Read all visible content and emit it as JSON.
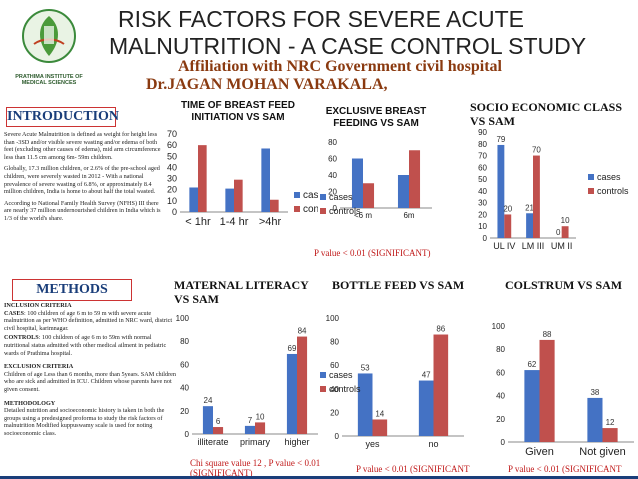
{
  "header": {
    "title_line1": "RISK FACTORS FOR SEVERE ACUTE",
    "title_line2": "MALNUTRITION - A CASE CONTROL STUDY",
    "affiliation": "Affiliation  with NRC Government civil hospital",
    "author": "Dr.JAGAN MOHAN VARAKALA,",
    "logo_text": "PRATHIMA INSTITUTE OF MEDICAL SCIENCES"
  },
  "intro": {
    "heading": "INTRODUCTION",
    "paragraphs": [
      "Severe Acute Malnutrition is defined as weight for height less than -3SD and/or visible severe wasting and/or edema of both feet (excluding other causes of edema), mid arm circumference less than 11.5 cm among 6m- 59m children.",
      "Globally, 17.3 million children, or 2.6% of the pre-school aged children, were severely wasted in 2012 - With a national prevalence of severe wasting of 6.8%, or approximately 8.4 million children, India is home to about half the total wasted.",
      "According to National Family Health Survey (NFHS) III there are nearly 37 million undernourished children in India which is 1/3 of the world's share."
    ]
  },
  "methods": {
    "heading": "METHODS",
    "blocks": [
      {
        "title": "INCLUSION CRITERIA",
        "text": ""
      },
      {
        "title": "CASES",
        "text": ": 100 children of age 6 m to 59 m with severe acute malnutrition as per WHO definition, admitted in NRC ward, district civil hospital, karimnagar."
      },
      {
        "title": "CONTROLS",
        "text": ": 100 children of age 6 m to 59m with normal nutritional status admitted with other medical ailment in pediatric wards of Prathima hospital."
      },
      {
        "title": "EXCLUSION CRITERIA",
        "text": "Children of age Less than 6 months, more than 5years. SAM children who are sick and admitted in ICU. Children whose parents have not given consent."
      },
      {
        "title": "METHODOLOGY",
        "text": "Detailed nutrition and socioeconomic history is taken in both the groups using a predesigned proforma to study the risk factors of malnutrition Modified kuppuswamy scale is used for noting socioeconomic class."
      }
    ]
  },
  "panel_titles": {
    "bf_init": "TIME OF BREAST FEED INITIATION VS SAM",
    "excl_bf": "EXCLUSIVE BREAST FEEDING VS SAM",
    "socio": "SOCIO ECONOMIC CLASS VS SAM",
    "maternal": "MATERNAL LITERACY VS SAM",
    "bottle": "BOTTLE FEED VS SAM",
    "colostrum": "COLSTRUM VS SAM"
  },
  "pvalues": {
    "excl_bf": "P value < 0.01 (SIGNIFICANT)",
    "maternal_l1": "Chi square value  12 , P value < 0.01",
    "maternal_l2": "(SIGNIFICANT)",
    "bottle": "P value < 0.01 (SIGNIFICANT",
    "colostrum": "P value < 0.01 (SIGNIFICANT"
  },
  "colors": {
    "cases": "#4472c4",
    "controls": "#c0504d"
  },
  "chart_data": [
    {
      "id": "bf_init",
      "type": "bar",
      "categories": [
        "< 1hr",
        "1-4 hr",
        ">4hr"
      ],
      "series": [
        {
          "name": "cases",
          "values": [
            22,
            21,
            57
          ]
        },
        {
          "name": "controls",
          "values": [
            60,
            29,
            11
          ]
        }
      ],
      "ylim": [
        0,
        70
      ],
      "yticks": [
        0,
        10,
        20,
        30,
        40,
        50,
        60,
        70
      ],
      "legend": "right"
    },
    {
      "id": "excl_bf",
      "type": "bar",
      "categories": [
        "<6 m",
        "6m"
      ],
      "series": [
        {
          "name": "cases",
          "values": [
            60,
            40
          ]
        },
        {
          "name": "controls",
          "values": [
            30,
            70
          ]
        }
      ],
      "ylim": [
        0,
        80
      ],
      "yticks": [
        0,
        20,
        40,
        60,
        80
      ],
      "legend": "left"
    },
    {
      "id": "socio",
      "type": "bar",
      "categories": [
        "UL IV",
        "LM III",
        "UM II"
      ],
      "series": [
        {
          "name": "cases",
          "values": [
            79,
            21,
            0
          ]
        },
        {
          "name": "controls",
          "values": [
            20,
            70,
            10
          ]
        }
      ],
      "data_labels": [
        [
          "79",
          "21",
          "0"
        ],
        [
          "20",
          "70",
          "10"
        ]
      ],
      "ylim": [
        0,
        90
      ],
      "yticks": [
        0,
        10,
        20,
        30,
        40,
        50,
        60,
        70,
        80,
        90
      ],
      "legend": "right"
    },
    {
      "id": "maternal",
      "type": "bar",
      "categories": [
        "illiterate",
        "primary",
        "higher"
      ],
      "series": [
        {
          "name": "cases",
          "values": [
            24,
            7,
            69
          ]
        },
        {
          "name": "controls",
          "values": [
            6,
            10,
            84
          ]
        }
      ],
      "ylim": [
        0,
        100
      ],
      "yticks": [
        0,
        20,
        40,
        60,
        80,
        100
      ],
      "legend": "none"
    },
    {
      "id": "bottle",
      "type": "bar",
      "categories": [
        "yes",
        "no"
      ],
      "series": [
        {
          "name": "cases",
          "values": [
            53,
            47
          ]
        },
        {
          "name": "controls",
          "values": [
            14,
            86
          ]
        }
      ],
      "ylim": [
        0,
        100
      ],
      "yticks": [
        0,
        20,
        40,
        60,
        80,
        100
      ],
      "legend": "left"
    },
    {
      "id": "colostrum",
      "type": "bar",
      "categories": [
        "Given",
        "Not given"
      ],
      "series": [
        {
          "name": "cases",
          "values": [
            62,
            38
          ]
        },
        {
          "name": "controls",
          "values": [
            88,
            12
          ]
        }
      ],
      "ylim": [
        0,
        100
      ],
      "yticks": [
        0,
        20,
        40,
        60,
        80,
        100
      ],
      "legend": "none"
    }
  ]
}
